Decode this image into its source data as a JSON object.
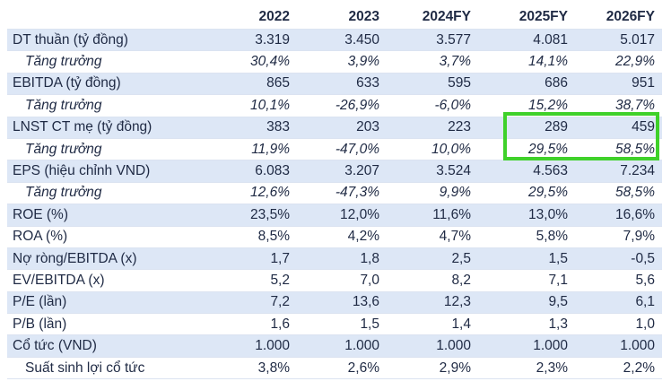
{
  "header": [
    "",
    "2022",
    "2023",
    "2024FY",
    "2025FY",
    "2026FY"
  ],
  "rows": [
    {
      "label": "DT thuần (tỷ đồng)",
      "values": [
        "3.319",
        "3.450",
        "3.577",
        "4.081",
        "5.017"
      ]
    },
    {
      "label": "Tăng trưởng",
      "values": [
        "30,4%",
        "3,9%",
        "3,7%",
        "14,1%",
        "22,9%"
      ]
    },
    {
      "label": "EBITDA (tỷ đồng)",
      "values": [
        "865",
        "633",
        "595",
        "686",
        "951"
      ]
    },
    {
      "label": "Tăng trưởng",
      "values": [
        "10,1%",
        "-26,9%",
        "-6,0%",
        "15,2%",
        "38,7%"
      ]
    },
    {
      "label": "LNST CT mẹ (tỷ đồng)",
      "values": [
        "383",
        "203",
        "223",
        "289",
        "459"
      ]
    },
    {
      "label": "Tăng trưởng",
      "values": [
        "11,9%",
        "-47,0%",
        "10,0%",
        "29,5%",
        "58,5%"
      ]
    },
    {
      "label": "EPS (hiệu chỉnh VND)",
      "values": [
        "6.083",
        "3.207",
        "3.524",
        "4.563",
        "7.234"
      ]
    },
    {
      "label": "Tăng trưởng",
      "values": [
        "12,6%",
        "-47,3%",
        "9,9%",
        "29,5%",
        "58,5%"
      ]
    },
    {
      "label": "ROE (%)",
      "values": [
        "23,5%",
        "12,0%",
        "11,6%",
        "13,0%",
        "16,6%"
      ]
    },
    {
      "label": "ROA (%)",
      "values": [
        "8,5%",
        "4,2%",
        "4,7%",
        "5,8%",
        "7,9%"
      ]
    },
    {
      "label": "Nợ ròng/EBITDA (x)",
      "values": [
        "1,7",
        "1,8",
        "2,5",
        "1,5",
        "-0,5"
      ]
    },
    {
      "label": "EV/EBITDA (x)",
      "values": [
        "5,2",
        "7,0",
        "8,2",
        "7,1",
        "5,6"
      ]
    },
    {
      "label": "P/E (lần)",
      "values": [
        "7,2",
        "13,6",
        "12,3",
        "9,5",
        "6,1"
      ]
    },
    {
      "label": "P/B (lần)",
      "values": [
        "1,6",
        "1,5",
        "1,4",
        "1,3",
        "1,0"
      ]
    },
    {
      "label": "Cổ tức (VND)",
      "values": [
        "1.000",
        "1.000",
        "1.000",
        "1.000",
        "1.000"
      ]
    },
    {
      "label": "Suất sinh lợi cổ tức",
      "values": [
        "3,8%",
        "2,6%",
        "2,9%",
        "2,3%",
        "2,2%"
      ]
    }
  ],
  "colors": {
    "shade": "#dde7f6",
    "text": "#1f2a44",
    "highlight": "#3fd12a"
  }
}
